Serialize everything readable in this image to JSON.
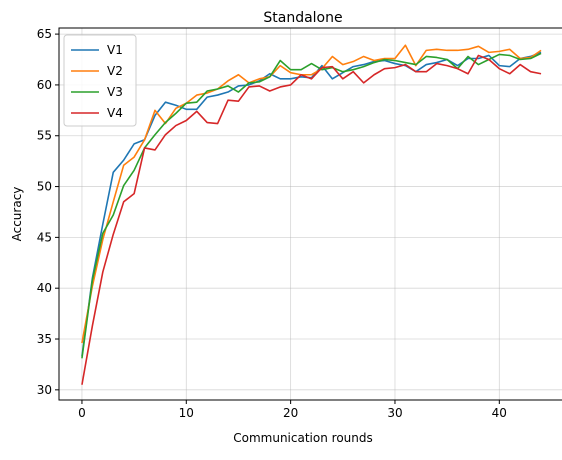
{
  "chart_data": {
    "type": "line",
    "title": "Standalone",
    "xlabel": "Communication rounds",
    "ylabel": "Accuracy",
    "xlim": [
      -2.2,
      46.2
    ],
    "ylim": [
      29,
      65.6
    ],
    "xticks": [
      0,
      10,
      20,
      30,
      40
    ],
    "yticks": [
      30,
      35,
      40,
      45,
      50,
      55,
      60,
      65
    ],
    "grid": true,
    "legend_position": "upper-left",
    "x": [
      0,
      1,
      2,
      3,
      4,
      5,
      6,
      7,
      8,
      9,
      10,
      11,
      12,
      13,
      14,
      15,
      16,
      17,
      18,
      19,
      20,
      21,
      22,
      23,
      24,
      25,
      26,
      27,
      28,
      29,
      30,
      31,
      32,
      33,
      34,
      35,
      36,
      37,
      38,
      39,
      40,
      41,
      42,
      43,
      44
    ],
    "series": [
      {
        "name": "V1",
        "color": "#1f77b4",
        "values": [
          33.3,
          41.0,
          46.3,
          51.4,
          52.6,
          54.2,
          54.6,
          57.0,
          58.3,
          58.0,
          57.6,
          57.6,
          58.8,
          59.0,
          59.3,
          59.9,
          60.0,
          60.4,
          61.1,
          60.6,
          60.6,
          60.8,
          60.7,
          61.9,
          60.6,
          61.2,
          61.8,
          62.0,
          62.3,
          62.4,
          62.1,
          61.9,
          61.3,
          62.0,
          62.2,
          62.5,
          61.9,
          62.6,
          62.6,
          62.9,
          61.9,
          61.8,
          62.6,
          62.8,
          63.2
        ]
      },
      {
        "name": "V2",
        "color": "#ff7f0e",
        "values": [
          34.6,
          40.2,
          44.8,
          48.5,
          52.1,
          52.9,
          54.6,
          57.5,
          56.2,
          57.7,
          58.2,
          59.0,
          59.2,
          59.6,
          60.4,
          61.0,
          60.2,
          60.6,
          60.8,
          61.9,
          61.2,
          61.0,
          61.0,
          61.6,
          62.8,
          62.0,
          62.3,
          62.8,
          62.4,
          62.6,
          62.6,
          63.9,
          61.9,
          63.4,
          63.5,
          63.4,
          63.4,
          63.5,
          63.8,
          63.2,
          63.3,
          63.5,
          62.6,
          62.7,
          63.4
        ]
      },
      {
        "name": "V3",
        "color": "#2ca02c",
        "values": [
          33.1,
          40.8,
          45.4,
          47.2,
          50.1,
          51.6,
          53.8,
          55.1,
          56.3,
          57.2,
          58.2,
          58.3,
          59.4,
          59.6,
          59.9,
          59.3,
          60.2,
          60.3,
          60.8,
          62.4,
          61.5,
          61.5,
          62.1,
          61.5,
          61.7,
          61.3,
          61.5,
          61.8,
          62.2,
          62.5,
          62.4,
          62.2,
          62.0,
          62.8,
          62.7,
          62.5,
          61.6,
          62.8,
          62.0,
          62.5,
          63.0,
          62.9,
          62.5,
          62.6,
          63.1
        ]
      },
      {
        "name": "V4",
        "color": "#d62728",
        "values": [
          30.5,
          36.3,
          41.6,
          45.3,
          48.5,
          49.3,
          53.8,
          53.6,
          55.1,
          56.0,
          56.5,
          57.4,
          56.3,
          56.2,
          58.5,
          58.4,
          59.8,
          59.9,
          59.4,
          59.8,
          60.0,
          61.0,
          60.6,
          61.7,
          61.8,
          60.6,
          61.3,
          60.2,
          61.0,
          61.6,
          61.7,
          62.0,
          61.3,
          61.3,
          62.1,
          61.9,
          61.6,
          61.1,
          62.9,
          62.5,
          61.6,
          61.1,
          62.0,
          61.3,
          61.1
        ]
      }
    ]
  }
}
